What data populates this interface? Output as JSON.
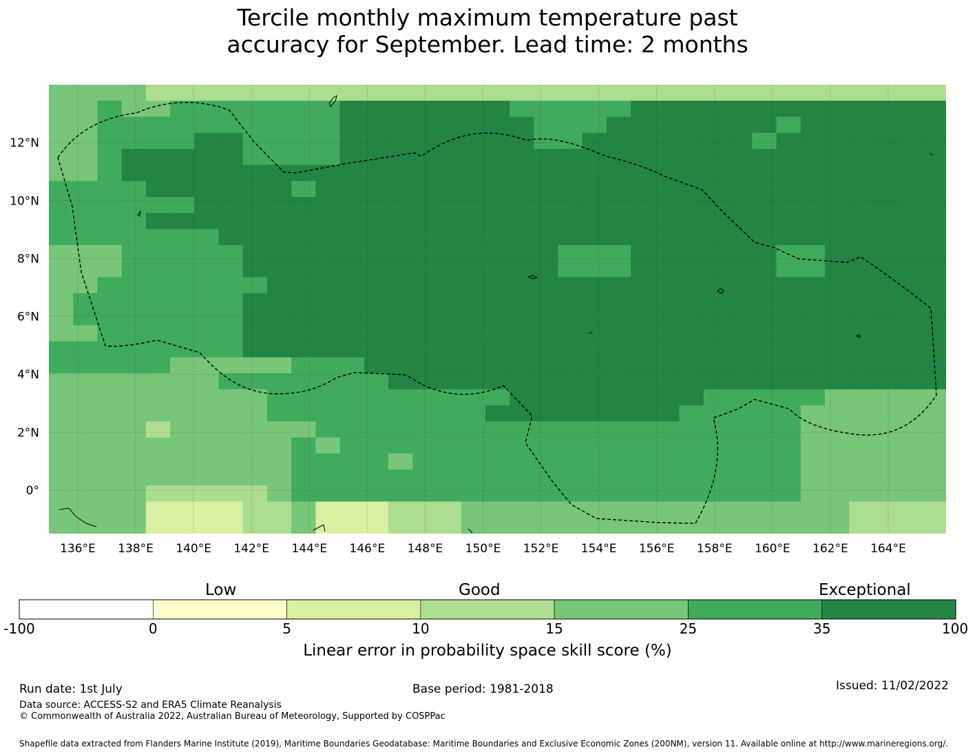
{
  "title_line1": "Tercile monthly maximum temperature past",
  "title_line2": "accuracy for September. Lead time: 2 months",
  "longitude_labels": [
    "136°E",
    "138°E",
    "140°E",
    "142°E",
    "144°E",
    "146°E",
    "148°E",
    "150°E",
    "152°E",
    "154°E",
    "156°E",
    "158°E",
    "160°E",
    "162°E",
    "164°E"
  ],
  "latitude_labels": [
    "12°N",
    "10°N",
    "8°N",
    "6°N",
    "4°N",
    "2°N",
    "0°"
  ],
  "map": {
    "lon_range": [
      135,
      166
    ],
    "lat_range": [
      -1.5,
      14
    ],
    "grid_cols": 37,
    "grid_rows": 28,
    "category_colors": [
      "#ffffff",
      "#ffffcc",
      "#d9f0a3",
      "#addd8e",
      "#78c679",
      "#41ab5d",
      "#238443"
    ],
    "skill_grid": [
      "4444333333333333333333333333333333333",
      "4454455555556666666555556666666666666",
      "4455555555556666666655566666665666666",
      "4455556655556666666655666666656666666",
      "4456666655556666666666666666666666666",
      "4456666666666666666666666666666666666",
      "5555666666566666666666666666666666666",
      "5555556666666666666666666666666666666",
      "5555666666666666666666666666666666666",
      "5555555666666666666666666666666666666",
      "4445555566666666666665556666665566666",
      "4445555566666666666665556666665566666",
      "4455555556666666666666666666666666666",
      "4555555566666666666666666666666666666",
      "4555555566666666666666666666666666666",
      "4455555566666666666666666666666666666",
      "5555555566666666666666666666666666666",
      "5555544444555666666666666666666666666",
      "4444444555555566666666666666666666666",
      "4444444445555555555666666665555544444",
      "4444444445555555556666666655555444444",
      "4444344444455555555555555555555444444",
      "4444444444545555555555555555555444444",
      "4444444444555545555555555555555444444",
      "4444444444555555555555555555555444444",
      "4444333334555555555555555555555444444",
      "4444222233422233344444444444444443333",
      "4444222233422233344444444444444443333"
    ]
  },
  "colorbar": {
    "bins": [
      {
        "tick": "-100",
        "color": "#ffffff"
      },
      {
        "tick": "0",
        "color": "#ffffcc"
      },
      {
        "tick": "5",
        "color": "#d9f0a3"
      },
      {
        "tick": "10",
        "color": "#addd8e"
      },
      {
        "tick": "15",
        "color": "#78c679"
      },
      {
        "tick": "25",
        "color": "#41ab5d"
      },
      {
        "tick": "35",
        "color": "#238443"
      }
    ],
    "last_tick": "100",
    "categories": {
      "low": "Low",
      "good": "Good",
      "exceptional": "Exceptional"
    },
    "label": "Linear error in probability space skill score (%)"
  },
  "footer": {
    "run_date": "Run date: 1st July",
    "base_period": "Base period: 1981-2018",
    "issued": "Issued: 11/02/2022",
    "data_source": "Data source: ACCESS-S2 and ERA5 Climate Reanalysis",
    "copyright": "© Commonwealth of Australia 2022, Australian Bureau of Meteorology, Supported by COSPPac",
    "shapefile": "Shapefile data extracted from Flanders Marine Institute (2019), Maritime Boundaries Geodatabase: Maritime Boundaries and Exclusive Economic Zones (200NM), version 11. Available online at http://www.marineregions.org/."
  }
}
